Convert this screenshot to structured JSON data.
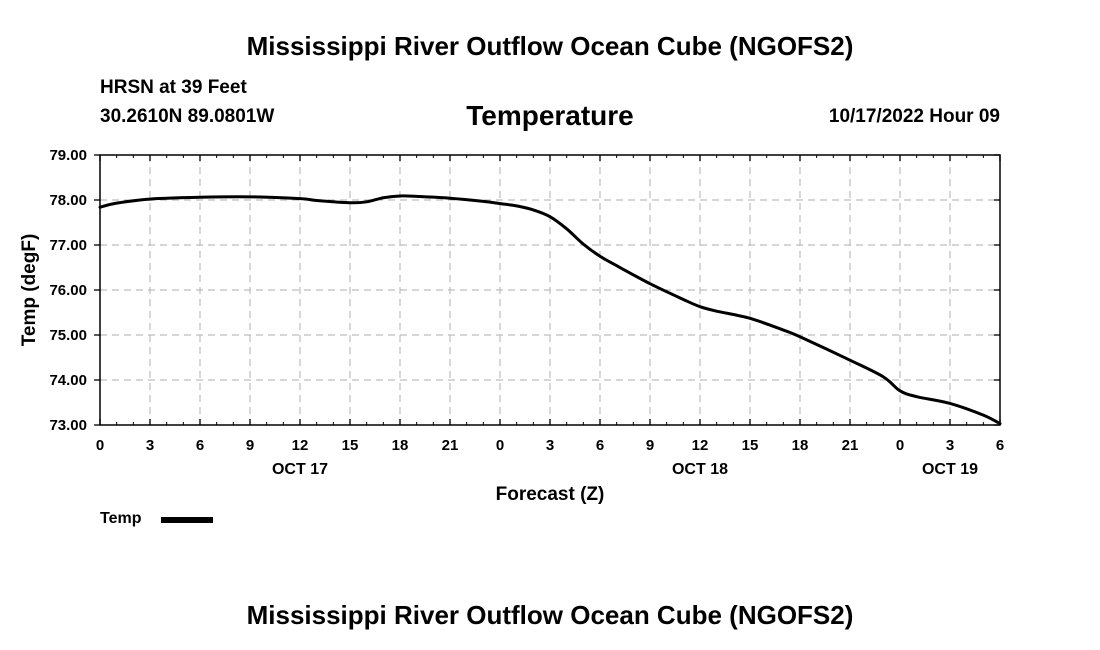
{
  "page": {
    "title": "Mississippi River Outflow Ocean Cube (NGOFS2)",
    "title_repeat": "Mississippi River Outflow Ocean Cube (NGOFS2)",
    "station_name": "HRSN at 39 Feet",
    "station_coords": "30.2610N  89.0801W",
    "subtitle": "Temperature",
    "forecast_time": "10/17/2022 Hour 09"
  },
  "chart_data": {
    "type": "line",
    "title": "Temperature",
    "xlabel": "Forecast (Z)",
    "ylabel": "Temp (degF)",
    "xlim": [
      0,
      54
    ],
    "ylim": [
      73.0,
      79.0
    ],
    "grid": true,
    "x_ticks": [
      0,
      3,
      6,
      9,
      12,
      15,
      18,
      21,
      24,
      27,
      30,
      33,
      36,
      39,
      42,
      45,
      48,
      51,
      54
    ],
    "x_tick_labels": [
      "0",
      "3",
      "6",
      "9",
      "12",
      "15",
      "18",
      "21",
      "0",
      "3",
      "6",
      "9",
      "12",
      "15",
      "18",
      "21",
      "0",
      "3",
      "6"
    ],
    "y_ticks": [
      73.0,
      74.0,
      75.0,
      76.0,
      77.0,
      78.0,
      79.0
    ],
    "y_tick_labels": [
      "73.00",
      "74.00",
      "75.00",
      "76.00",
      "77.00",
      "78.00",
      "79.00"
    ],
    "date_labels": [
      {
        "x": 12,
        "label": "OCT 17"
      },
      {
        "x": 36,
        "label": "OCT 18"
      },
      {
        "x": 51,
        "label": "OCT 19"
      }
    ],
    "legend": {
      "label": "Temp",
      "placement": "bottom-left"
    },
    "series": [
      {
        "name": "Temp",
        "color": "#000000",
        "x": [
          0,
          1,
          3,
          6,
          9,
          12,
          13,
          15,
          16,
          17,
          18,
          19,
          21,
          23,
          24,
          25,
          26,
          27,
          28,
          29,
          30,
          31,
          33,
          35,
          36,
          37,
          39,
          41,
          42,
          45,
          47,
          48,
          49,
          51,
          53,
          54
        ],
        "values": [
          77.84,
          77.93,
          78.02,
          78.06,
          78.07,
          78.03,
          77.99,
          77.94,
          77.96,
          78.05,
          78.09,
          78.08,
          78.04,
          77.97,
          77.92,
          77.87,
          77.78,
          77.63,
          77.36,
          77.02,
          76.75,
          76.54,
          76.14,
          75.79,
          75.63,
          75.53,
          75.37,
          75.11,
          74.96,
          74.44,
          74.07,
          73.76,
          73.63,
          73.48,
          73.22,
          73.03
        ]
      }
    ]
  }
}
